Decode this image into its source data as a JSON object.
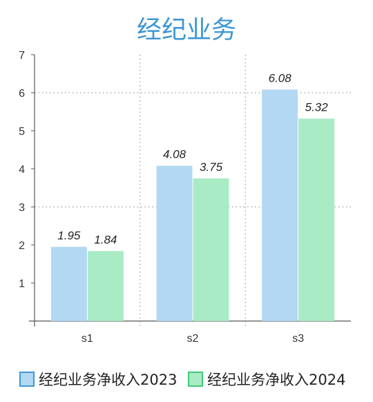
{
  "chart_data": {
    "type": "bar",
    "title": "经纪业务",
    "categories": [
      "s1",
      "s2",
      "s3"
    ],
    "series": [
      {
        "name": "经纪业务净收入2023",
        "values": [
          1.95,
          4.08,
          6.08
        ],
        "color": "#b3d8f3",
        "border": "#3d97d3"
      },
      {
        "name": "经纪业务净收入2024",
        "values": [
          1.84,
          3.75,
          5.32
        ],
        "color": "#a8ebc5",
        "border": "#3ec97a"
      }
    ],
    "ylim": [
      0,
      7
    ],
    "yticks": [
      "1",
      "2",
      "3",
      "4",
      "5",
      "6",
      "7"
    ],
    "dotted_gridlines_y": [
      3,
      6
    ],
    "dotted_vertical_separators": true,
    "legend_position": "bottom",
    "data_labels": true
  }
}
